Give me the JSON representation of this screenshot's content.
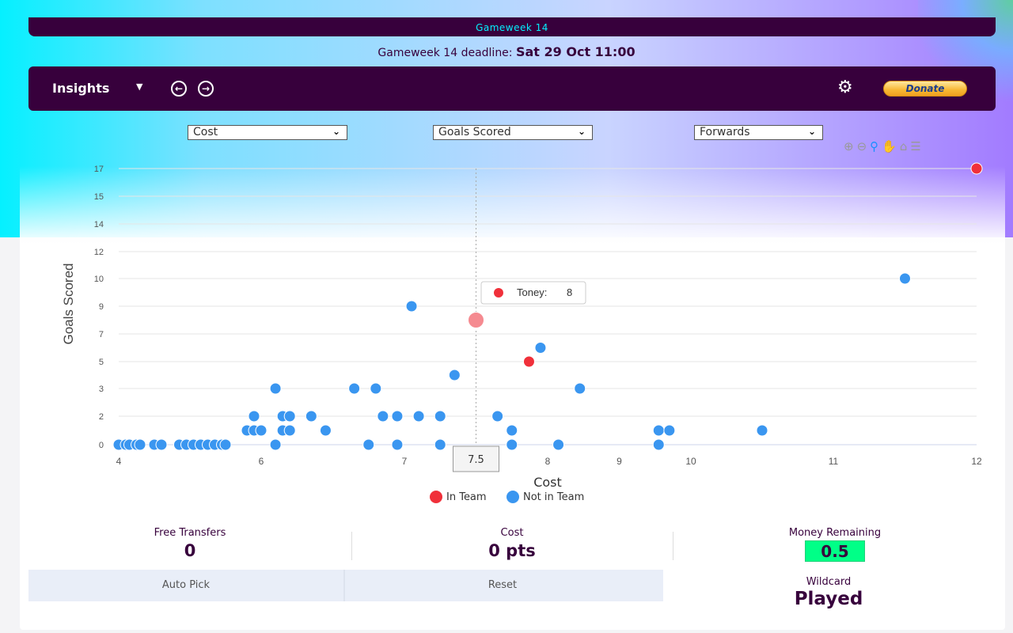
{
  "header": {
    "gameweek_title": "Gameweek 14",
    "deadline_label": "Gameweek 14 deadline:",
    "deadline_value": "Sat 29 Oct 11:00"
  },
  "toolbar": {
    "insights_label": "Insights",
    "donate_label": "Donate",
    "icons": [
      "chevron-down-icon",
      "arrow-left-circle-icon",
      "arrow-right-circle-icon",
      "gear-icon"
    ]
  },
  "filters": {
    "x_metric": "Cost",
    "y_metric": "Goals Scored",
    "position": "Forwards"
  },
  "chart_tools": [
    "zoom-in-icon",
    "zoom-out-icon",
    "selection-zoom-icon",
    "pan-hand-icon",
    "home-icon",
    "menu-icon"
  ],
  "chart_data": {
    "type": "scatter",
    "xlabel": "Cost",
    "ylabel": "Goals Scored",
    "x_ticks": [
      "4",
      "6",
      "7",
      "7.5",
      "8",
      "9",
      "10",
      "11",
      "12"
    ],
    "y_ticks": [
      "0",
      "2",
      "3",
      "5",
      "7",
      "9",
      "10",
      "12",
      "14",
      "15",
      "17"
    ],
    "legend": [
      {
        "name": "In Team",
        "color": "#f0303a"
      },
      {
        "name": "Not in Team",
        "color": "#3a96f0"
      }
    ],
    "legend_position": "bottom-center",
    "crosshair_x": "7.5",
    "tooltip": {
      "name": "Toney:",
      "value": "8"
    },
    "series": [
      {
        "name": "In Team",
        "points": [
          [
            7.5,
            8
          ],
          [
            7.87,
            5
          ],
          [
            12,
            17
          ]
        ]
      },
      {
        "name": "Not in Team",
        "points": [
          [
            4.0,
            0
          ],
          [
            4.1,
            0
          ],
          [
            4.15,
            0
          ],
          [
            4.25,
            0
          ],
          [
            4.3,
            0
          ],
          [
            4.5,
            0
          ],
          [
            4.6,
            0
          ],
          [
            4.85,
            0
          ],
          [
            4.95,
            0
          ],
          [
            5.05,
            0
          ],
          [
            5.15,
            0
          ],
          [
            5.25,
            0
          ],
          [
            5.35,
            0
          ],
          [
            5.45,
            0
          ],
          [
            5.5,
            0
          ],
          [
            6.1,
            0
          ],
          [
            6.75,
            0
          ],
          [
            6.95,
            0
          ],
          [
            7.25,
            0
          ],
          [
            7.75,
            0
          ],
          [
            8.15,
            0
          ],
          [
            9.55,
            0
          ],
          [
            5.8,
            1
          ],
          [
            5.9,
            1
          ],
          [
            6.0,
            1
          ],
          [
            6.15,
            1
          ],
          [
            6.2,
            1
          ],
          [
            6.45,
            1
          ],
          [
            7.75,
            1
          ],
          [
            9.55,
            1
          ],
          [
            9.7,
            1
          ],
          [
            10.5,
            1
          ],
          [
            5.9,
            2
          ],
          [
            6.15,
            2
          ],
          [
            6.2,
            2
          ],
          [
            6.35,
            2
          ],
          [
            6.85,
            2
          ],
          [
            6.95,
            2
          ],
          [
            7.1,
            2
          ],
          [
            7.25,
            2
          ],
          [
            7.65,
            2
          ],
          [
            6.1,
            3
          ],
          [
            6.65,
            3
          ],
          [
            6.8,
            3
          ],
          [
            8.45,
            3
          ],
          [
            7.35,
            4
          ],
          [
            7.95,
            6
          ],
          [
            7.05,
            9
          ],
          [
            11.5,
            10
          ]
        ]
      }
    ]
  },
  "stats": {
    "free_transfers_label": "Free Transfers",
    "free_transfers_value": "0",
    "cost_label": "Cost",
    "cost_value": "0 pts",
    "money_label": "Money Remaining",
    "money_value": "0.5",
    "wildcard_label": "Wildcard",
    "wildcard_value": "Played"
  },
  "buttons": {
    "auto_pick": "Auto Pick",
    "reset": "Reset"
  }
}
